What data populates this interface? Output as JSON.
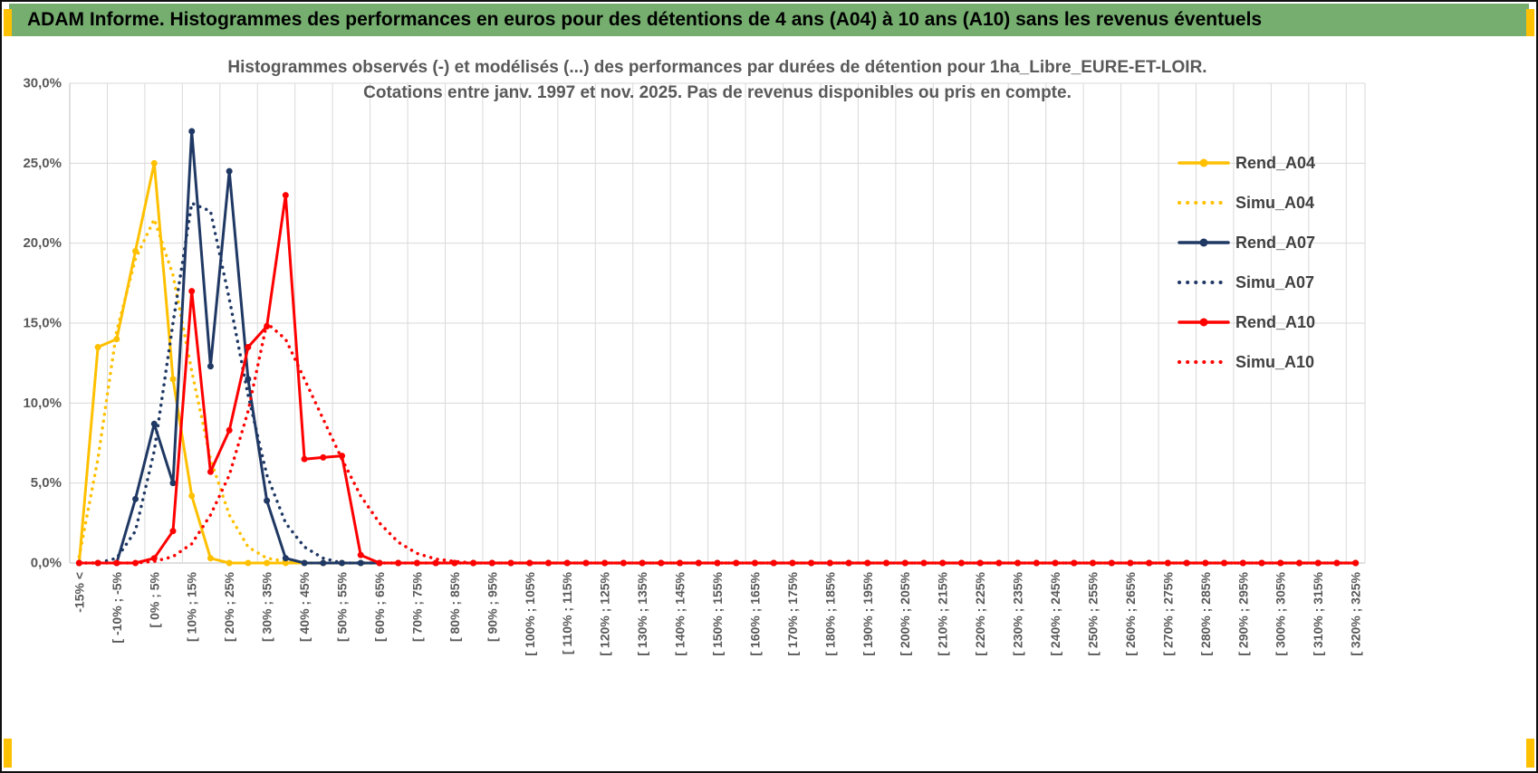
{
  "header": {
    "title": "ADAM Informe. Histogrammes des performances en euros pour des détentions de 4 ans (A04) à 10 ans (A10) sans les revenus éventuels"
  },
  "colors": {
    "header_bg": "#75AE6F",
    "accent": "#FFC000",
    "grid": "#D9D9D9",
    "axis": "#BFBFBF",
    "text": "#595959",
    "legend_text": "#404040",
    "gold": "#FFC000",
    "navy": "#1F3864",
    "red": "#FF0000"
  },
  "chart_data": {
    "type": "line",
    "title_line1": "Histogrammes observés (-) et modélisés (...) des performances par durées de détention pour 1ha_Libre_EURE-ET-LOIR.",
    "title_line2": "Cotations entre janv. 1997 et nov. 2025. Pas de revenus disponibles ou pris en compte.",
    "xlabel": "",
    "ylabel": "",
    "ylim": [
      0,
      30
    ],
    "y_step": 5,
    "y_ticks": [
      "0,0%",
      "5,0%",
      "10,0%",
      "15,0%",
      "20,0%",
      "25,0%",
      "30,0%"
    ],
    "n_bins": 69,
    "x_tick_every": 2,
    "x_tick_labels": [
      "-15% <",
      "[ -10% ; -5%",
      "[ 0% ; 5%",
      "[ 10% ; 15%",
      "[ 20% ; 25%",
      "[ 30% ; 35%",
      "[ 40% ; 45%",
      "[ 50% ; 55%",
      "[ 60% ; 65%",
      "[ 70% ; 75%",
      "[ 80% ; 85%",
      "[ 90% ; 95%",
      "[ 100% ; 105%",
      "[ 110% ; 115%",
      "[ 120% ; 125%",
      "[ 130% ; 135%",
      "[ 140% ; 145%",
      "[ 150% ; 155%",
      "[ 160% ; 165%",
      "[ 170% ; 175%",
      "[ 180% ; 185%",
      "[ 190% ; 195%",
      "[ 200% ; 205%",
      "[ 210% ; 215%",
      "[ 220% ; 225%",
      "[ 230% ; 235%",
      "[ 240% ; 245%",
      "[ 250% ; 255%",
      "[ 260% ; 265%",
      "[ 270% ; 275%",
      "[ 280% ; 285%",
      "[ 290% ; 295%",
      "[ 300% ; 305%",
      "[ 310% ; 315%",
      "[ 320% ; 325%"
    ],
    "grid": true,
    "legend_position": "right",
    "pad_values_with_zeros_to_n_bins": true,
    "series": [
      {
        "name": "Rend_A04",
        "color": "#FFC000",
        "style": "solid",
        "values": [
          0,
          13.5,
          14.0,
          19.5,
          25.0,
          11.5,
          4.2,
          0.3
        ]
      },
      {
        "name": "Simu_A04",
        "color": "#FFC000",
        "style": "dotted",
        "values": [
          0.4,
          6.5,
          14.5,
          19.0,
          21.5,
          18.0,
          12.0,
          6.5,
          3.0,
          1.0,
          0.3,
          0.1
        ]
      },
      {
        "name": "Rend_A07",
        "color": "#1F3864",
        "style": "solid",
        "values": [
          0,
          0,
          0,
          4.0,
          8.7,
          5.0,
          27.0,
          12.3,
          24.5,
          11.5,
          3.9,
          0.3
        ]
      },
      {
        "name": "Simu_A07",
        "color": "#1F3864",
        "style": "dotted",
        "values": [
          0,
          0,
          0.3,
          2.0,
          7.0,
          15.0,
          22.5,
          22.0,
          16.5,
          10.5,
          5.5,
          2.5,
          1.0,
          0.3
        ]
      },
      {
        "name": "Rend_A10",
        "color": "#FF0000",
        "style": "solid",
        "values": [
          0,
          0,
          0,
          0,
          0.3,
          2.0,
          17.0,
          5.7,
          8.3,
          13.5,
          14.8,
          23.0,
          6.5,
          6.6,
          6.7,
          0.5
        ]
      },
      {
        "name": "Simu_A10",
        "color": "#FF0000",
        "style": "dotted",
        "values": [
          0,
          0,
          0,
          0,
          0.1,
          0.4,
          1.2,
          3.0,
          5.5,
          9.5,
          15.0,
          14.0,
          11.5,
          9.0,
          6.5,
          4.2,
          2.5,
          1.3,
          0.6,
          0.25,
          0.1
        ]
      }
    ]
  }
}
